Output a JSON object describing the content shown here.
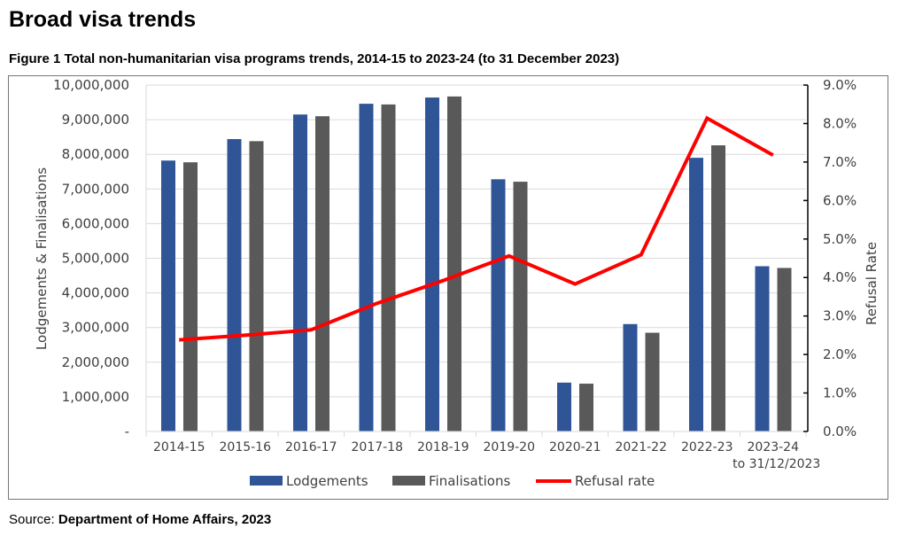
{
  "page": {
    "title": "Broad visa trends",
    "figure_title": "Figure 1 Total non-humanitarian visa programs trends, 2014-15 to 2023-24 (to 31 December 2023)",
    "source_label": "Source:",
    "source_text": "Department of Home Affairs, 2023"
  },
  "colors": {
    "lodgements": "#2F5597",
    "finalisations": "#595959",
    "refusal_rate": "#FF0000",
    "gridline": "#D9D9D9"
  },
  "chart_data": {
    "type": "bar",
    "title": "Figure 1 Total non-humanitarian visa programs trends, 2014-15 to 2023-24 (to 31 December 2023)",
    "categories": [
      "2014-15",
      "2015-16",
      "2016-17",
      "2017-18",
      "2018-19",
      "2019-20",
      "2020-21",
      "2021-22",
      "2022-23",
      "2023-24"
    ],
    "category_sublabels": [
      "",
      "",
      "",
      "",
      "",
      "",
      "",
      "",
      "",
      "to 31/12/2023"
    ],
    "series": [
      {
        "name": "Lodgements",
        "type": "bar",
        "axis": "left",
        "values": [
          7820000,
          8440000,
          9150000,
          9460000,
          9640000,
          7280000,
          1410000,
          3100000,
          7900000,
          4770000
        ]
      },
      {
        "name": "Finalisations",
        "type": "bar",
        "axis": "left",
        "values": [
          7770000,
          8380000,
          9100000,
          9440000,
          9670000,
          7210000,
          1380000,
          2850000,
          8260000,
          4720000
        ]
      },
      {
        "name": "Refusal rate",
        "type": "line",
        "axis": "right",
        "values": [
          0.0238,
          0.025,
          0.0264,
          0.0333,
          0.0392,
          0.0456,
          0.0383,
          0.0459,
          0.0814,
          0.0718
        ]
      }
    ],
    "ylabel": "Lodgements & Finalisations",
    "y2label": "Refusal Rate",
    "ylim": [
      0,
      10000000
    ],
    "y2lim": [
      0,
      0.09
    ],
    "yticks": [
      0,
      1000000,
      2000000,
      3000000,
      4000000,
      5000000,
      6000000,
      7000000,
      8000000,
      9000000,
      10000000
    ],
    "ytick_labels": [
      "-",
      "1,000,000",
      "2,000,000",
      "3,000,000",
      "4,000,000",
      "5,000,000",
      "6,000,000",
      "7,000,000",
      "8,000,000",
      "9,000,000",
      "10,000,000"
    ],
    "y2ticks": [
      0,
      0.01,
      0.02,
      0.03,
      0.04,
      0.05,
      0.06,
      0.07,
      0.08,
      0.09
    ],
    "y2tick_labels": [
      "0.0%",
      "1.0%",
      "2.0%",
      "3.0%",
      "4.0%",
      "5.0%",
      "6.0%",
      "7.0%",
      "8.0%",
      "9.0%"
    ],
    "grid": true,
    "legend": {
      "position": "bottom",
      "entries": [
        "Lodgements",
        "Finalisations",
        "Refusal rate"
      ]
    }
  }
}
